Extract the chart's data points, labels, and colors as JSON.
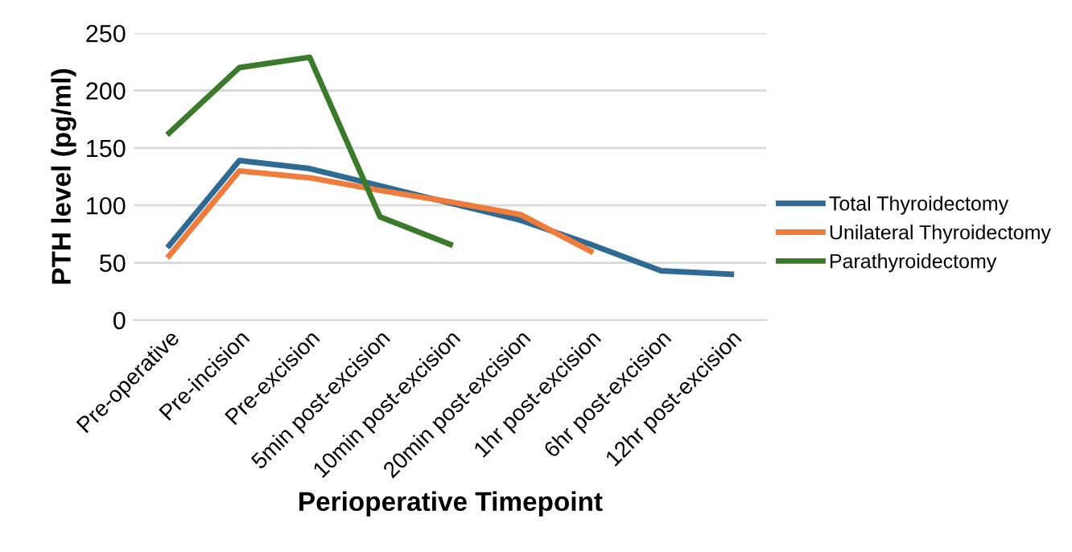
{
  "chart_data": {
    "type": "line",
    "xlabel": "Perioperative Timepoint",
    "ylabel": "PTH level (pg/ml)",
    "categories": [
      "Pre-operative",
      "Pre-incision",
      "Pre-excision",
      "5min post-excision",
      "10min post-excision",
      "20min post-excision",
      "1hr post-excision",
      "6hr post-excision",
      "12hr post-excision"
    ],
    "series": [
      {
        "name": "Total Thyroidectomy",
        "color": "#2e6a94",
        "values": [
          65,
          139,
          132,
          117,
          102,
          87,
          66,
          43,
          40
        ]
      },
      {
        "name": "Unilateral Thyroidectomy",
        "color": "#f07b3a",
        "values": [
          56,
          130,
          124,
          113,
          103,
          92,
          60,
          null,
          null
        ]
      },
      {
        "name": "Parathyroidectomy",
        "color": "#3a7a2a",
        "values": [
          163,
          220,
          229,
          90,
          66,
          null,
          null,
          null,
          null
        ]
      }
    ],
    "ylim": [
      0,
      250
    ],
    "yticks": [
      0,
      50,
      100,
      150,
      200,
      250
    ],
    "grid": "y",
    "legend": "right",
    "marker": "none",
    "line_style": "solid"
  }
}
